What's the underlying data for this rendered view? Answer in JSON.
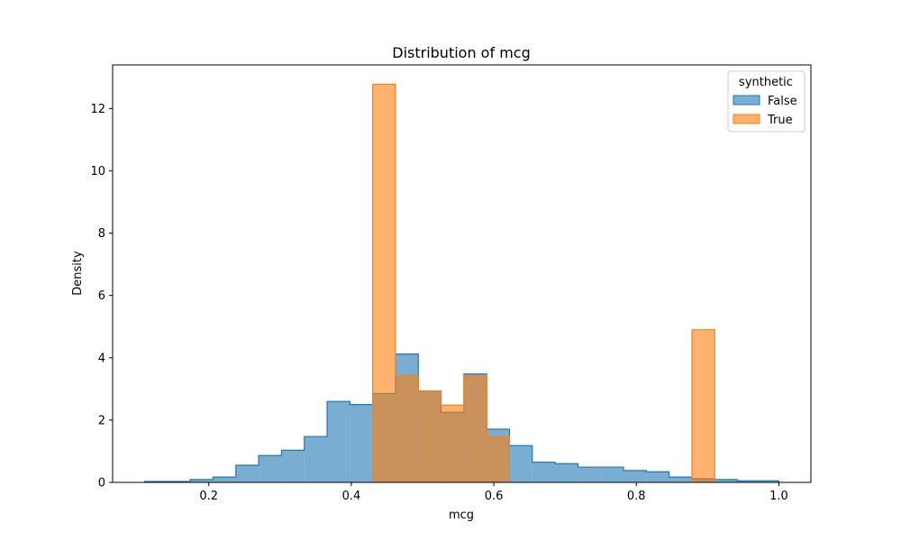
{
  "chart_data": {
    "type": "histogram",
    "title": "Distribution of mcg",
    "xlabel": "mcg",
    "ylabel": "Density",
    "xlim": [
      0.065,
      1.045
    ],
    "ylim": [
      0,
      13.4
    ],
    "x_ticks": [
      0.2,
      0.4,
      0.6,
      0.8,
      1.0
    ],
    "x_tick_labels": [
      "0.2",
      "0.4",
      "0.6",
      "0.8",
      "1.0"
    ],
    "y_ticks": [
      0,
      2,
      4,
      6,
      8,
      10,
      12
    ],
    "y_tick_labels": [
      "0",
      "2",
      "4",
      "6",
      "8",
      "10",
      "12"
    ],
    "grid": false,
    "legend": {
      "title": "synthetic",
      "placement": "top-right"
    },
    "series": [
      {
        "name": "False",
        "color": "#1f77b4",
        "fill_opacity": 0.6,
        "bins": [
          [
            0.11,
            0.142,
            0.03
          ],
          [
            0.142,
            0.174,
            0.03
          ],
          [
            0.174,
            0.206,
            0.09
          ],
          [
            0.206,
            0.238,
            0.17
          ],
          [
            0.238,
            0.27,
            0.55
          ],
          [
            0.27,
            0.302,
            0.86
          ],
          [
            0.302,
            0.334,
            1.03
          ],
          [
            0.334,
            0.366,
            1.47
          ],
          [
            0.366,
            0.398,
            2.6
          ],
          [
            0.398,
            0.43,
            2.5
          ],
          [
            0.43,
            0.462,
            2.85
          ],
          [
            0.462,
            0.494,
            4.12
          ],
          [
            0.494,
            0.526,
            2.93
          ],
          [
            0.526,
            0.558,
            2.25
          ],
          [
            0.558,
            0.59,
            3.48
          ],
          [
            0.59,
            0.622,
            1.71
          ],
          [
            0.622,
            0.654,
            1.18
          ],
          [
            0.654,
            0.686,
            0.65
          ],
          [
            0.686,
            0.718,
            0.6
          ],
          [
            0.718,
            0.75,
            0.49
          ],
          [
            0.75,
            0.782,
            0.49
          ],
          [
            0.782,
            0.814,
            0.38
          ],
          [
            0.814,
            0.846,
            0.34
          ],
          [
            0.846,
            0.878,
            0.17
          ],
          [
            0.878,
            0.91,
            0.12
          ],
          [
            0.91,
            0.942,
            0.09
          ],
          [
            0.942,
            0.974,
            0.05
          ],
          [
            0.974,
            1.0,
            0.05
          ]
        ]
      },
      {
        "name": "True",
        "color": "#ff7f0e",
        "fill_opacity": 0.6,
        "bins": [
          [
            0.43,
            0.462,
            12.78
          ],
          [
            0.462,
            0.494,
            3.42
          ],
          [
            0.494,
            0.526,
            2.93
          ],
          [
            0.526,
            0.558,
            2.48
          ],
          [
            0.558,
            0.59,
            3.42
          ],
          [
            0.59,
            0.622,
            1.47
          ],
          [
            0.878,
            0.91,
            4.9
          ]
        ]
      }
    ]
  }
}
